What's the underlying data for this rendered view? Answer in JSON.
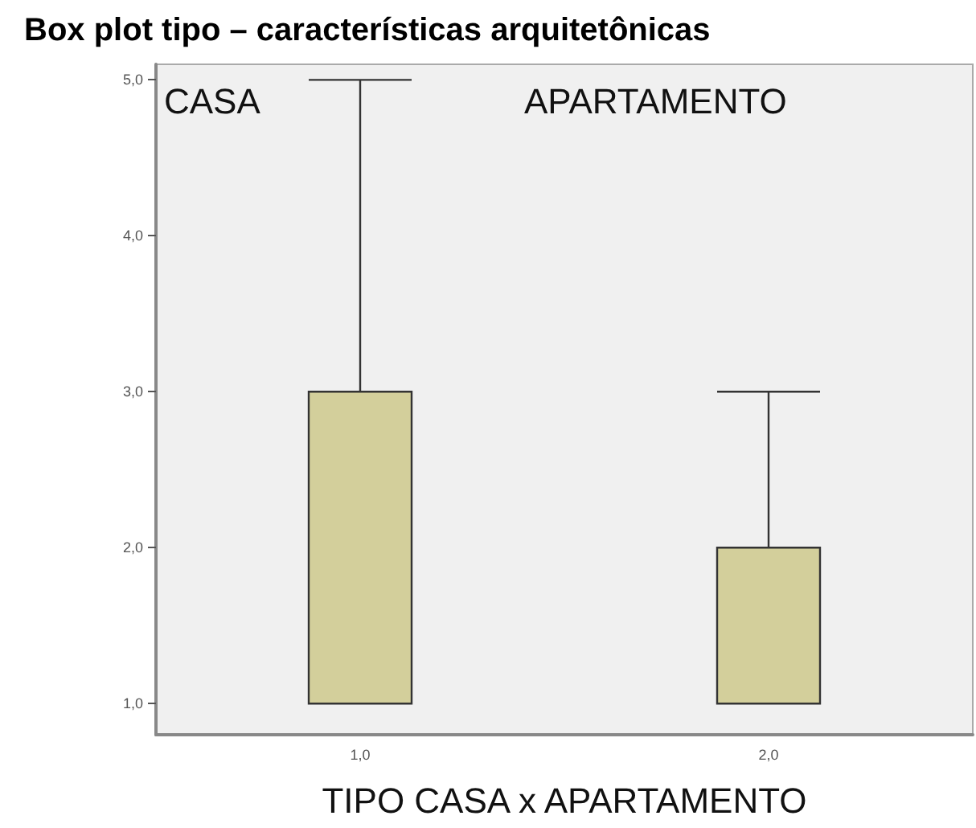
{
  "chart_data": {
    "type": "box",
    "title": "Box plot tipo – características arquitetônicas",
    "xlabel": "TIPO CASA x APARTAMENTO",
    "categories": [
      "1,0",
      "2,0"
    ],
    "boxes": [
      {
        "low": 1,
        "q1": 1,
        "median": 1,
        "q3": 3,
        "high": 5
      },
      {
        "low": 1,
        "q1": 1,
        "median": 1,
        "q3": 2,
        "high": 3
      }
    ],
    "color": "#d3cf9b",
    "annotations": [
      "CASA",
      "APARTAMENTO"
    ],
    "ylim": [
      0.8,
      5.1
    ],
    "yticks": [
      {
        "value": 1,
        "label": "1,0"
      },
      {
        "value": 2,
        "label": "2,0"
      },
      {
        "value": 3,
        "label": "3,0"
      },
      {
        "value": 4,
        "label": "4,0"
      },
      {
        "value": 5,
        "label": "5,0"
      }
    ],
    "grid": false
  }
}
